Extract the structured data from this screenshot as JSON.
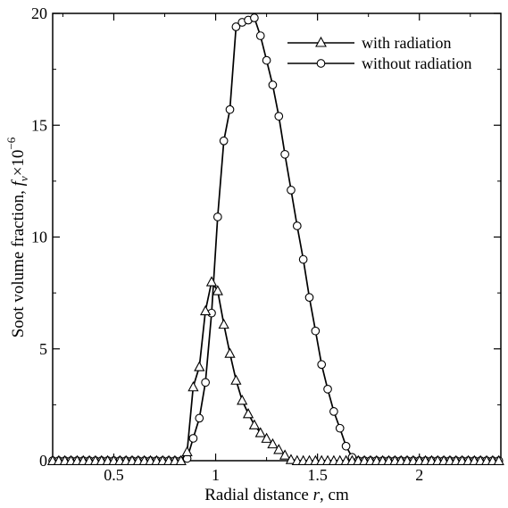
{
  "chart_data": {
    "type": "line",
    "xlabel_prefix": "Radial distance ",
    "xlabel_var": "r",
    "xlabel_suffix": ", cm",
    "ylabel_prefix": "Soot volume fraction, ",
    "ylabel_var": "f",
    "ylabel_sub": "v",
    "ylabel_times": "×10",
    "ylabel_exp": "−6",
    "xlim": [
      0.2,
      2.4
    ],
    "ylim": [
      0,
      20
    ],
    "xticks": [
      0.5,
      1,
      1.5,
      2
    ],
    "xtick_labels": [
      "0.5",
      "1",
      "1.5",
      "2"
    ],
    "yticks": [
      0,
      5,
      10,
      15,
      20
    ],
    "ytick_labels": [
      "0",
      "5",
      "10",
      "15",
      "20"
    ],
    "grid": false,
    "legend_position": "top-right",
    "series": [
      {
        "name": "with radiation",
        "marker": "triangle",
        "x": [
          0.2,
          0.23,
          0.26,
          0.29,
          0.32,
          0.35,
          0.38,
          0.41,
          0.44,
          0.47,
          0.5,
          0.53,
          0.56,
          0.59,
          0.62,
          0.65,
          0.68,
          0.71,
          0.74,
          0.77,
          0.8,
          0.83,
          0.86,
          0.89,
          0.92,
          0.95,
          0.98,
          1.01,
          1.04,
          1.07,
          1.1,
          1.13,
          1.16,
          1.19,
          1.22,
          1.25,
          1.28,
          1.31,
          1.34,
          1.37,
          1.4,
          1.43,
          1.46,
          1.49,
          1.52,
          1.55,
          1.58,
          1.61,
          1.64,
          1.67,
          1.7,
          1.73,
          1.76,
          1.79,
          1.82,
          1.85,
          1.88,
          1.91,
          1.94,
          1.97,
          2.0,
          2.03,
          2.06,
          2.09,
          2.12,
          2.15,
          2.18,
          2.21,
          2.24,
          2.27,
          2.3,
          2.33,
          2.36,
          2.39
        ],
        "y": [
          0,
          0,
          0,
          0,
          0,
          0,
          0,
          0,
          0,
          0,
          0,
          0,
          0,
          0,
          0,
          0,
          0,
          0,
          0,
          0,
          0,
          0,
          0.4,
          3.3,
          4.2,
          6.7,
          8.0,
          7.6,
          6.1,
          4.8,
          3.6,
          2.7,
          2.1,
          1.6,
          1.25,
          1.0,
          0.75,
          0.5,
          0.25,
          0.05,
          0,
          0,
          0,
          0,
          0,
          0,
          0,
          0,
          0,
          0,
          0,
          0,
          0,
          0,
          0,
          0,
          0,
          0,
          0,
          0,
          0,
          0,
          0,
          0,
          0,
          0,
          0,
          0,
          0,
          0,
          0,
          0,
          0,
          0
        ]
      },
      {
        "name": "without radiation",
        "marker": "circle",
        "x": [
          0.2,
          0.23,
          0.26,
          0.29,
          0.32,
          0.35,
          0.38,
          0.41,
          0.44,
          0.47,
          0.5,
          0.53,
          0.56,
          0.59,
          0.62,
          0.65,
          0.68,
          0.71,
          0.74,
          0.77,
          0.8,
          0.83,
          0.86,
          0.89,
          0.92,
          0.95,
          0.98,
          1.01,
          1.04,
          1.07,
          1.1,
          1.13,
          1.16,
          1.19,
          1.22,
          1.25,
          1.28,
          1.31,
          1.34,
          1.37,
          1.4,
          1.43,
          1.46,
          1.49,
          1.52,
          1.55,
          1.58,
          1.61,
          1.64,
          1.67,
          1.7,
          1.73,
          1.76,
          1.79,
          1.82,
          1.85,
          1.88,
          1.91,
          1.94,
          1.97,
          2.0,
          2.03,
          2.06,
          2.09,
          2.12,
          2.15,
          2.18,
          2.21,
          2.24,
          2.27,
          2.3,
          2.33,
          2.36,
          2.39
        ],
        "y": [
          0,
          0,
          0,
          0,
          0,
          0,
          0,
          0,
          0,
          0,
          0,
          0,
          0,
          0,
          0,
          0,
          0,
          0,
          0,
          0,
          0,
          0,
          0.1,
          1.0,
          1.9,
          3.5,
          6.6,
          10.9,
          14.3,
          15.7,
          19.4,
          19.6,
          19.7,
          19.8,
          19.0,
          17.9,
          16.8,
          15.4,
          13.7,
          12.1,
          10.5,
          9.0,
          7.3,
          5.8,
          4.3,
          3.2,
          2.2,
          1.45,
          0.65,
          0.15,
          0,
          0,
          0,
          0,
          0,
          0,
          0,
          0,
          0,
          0,
          0,
          0,
          0,
          0,
          0,
          0,
          0,
          0,
          0,
          0,
          0,
          0,
          0,
          0
        ]
      }
    ]
  }
}
